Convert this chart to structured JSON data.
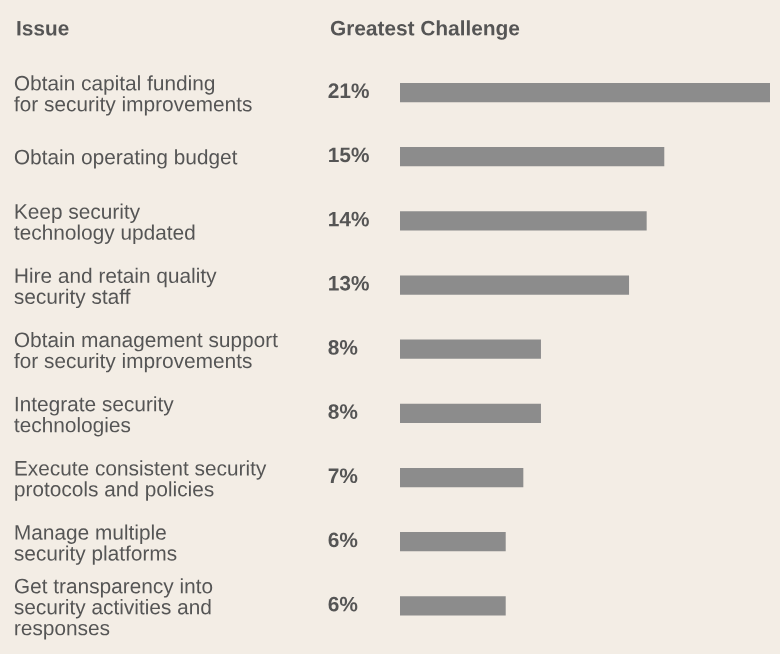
{
  "chart_data": {
    "type": "bar",
    "orientation": "horizontal",
    "xlabel": "Greatest Challenge",
    "ylabel": "Issue",
    "categories": [
      "Obtain capital funding\nfor security improvements",
      "Obtain operating budget",
      "Keep security\ntechnology updated",
      "Hire and retain quality\nsecurity staff",
      "Obtain management support\nfor security improvements",
      "Integrate security\ntechnologies",
      "Execute consistent security\nprotocols and policies",
      "Manage multiple\nsecurity platforms",
      "Get transparency into\nsecurity activities and\nresponses"
    ],
    "values": [
      21,
      15,
      14,
      13,
      8,
      8,
      7,
      6,
      6
    ],
    "value_labels": [
      "21%",
      "15%",
      "14%",
      "13%",
      "8%",
      "8%",
      "7%",
      "6%",
      "6%"
    ],
    "color": "#8c8c8c",
    "grid": false,
    "legend": false
  }
}
